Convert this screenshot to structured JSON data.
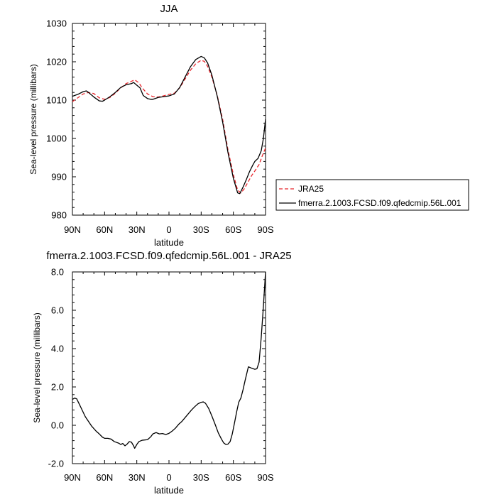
{
  "chart_data": [
    {
      "type": "line",
      "title": "JJA",
      "xlabel": "latitude",
      "ylabel": "Sea-level pressure (millibars)",
      "xlim": [
        90,
        -90
      ],
      "ylim": [
        980,
        1030
      ],
      "xticks": [
        90,
        60,
        30,
        0,
        -30,
        -60,
        -90
      ],
      "xtick_labels": [
        "90N",
        "60N",
        "30N",
        "0",
        "30S",
        "60S",
        "90S"
      ],
      "yticks": [
        980,
        990,
        1000,
        1010,
        1020,
        1030
      ],
      "ytick_labels": [
        "980",
        "990",
        "1000",
        "1010",
        "1020",
        "1030"
      ],
      "legend_position": "outside-right",
      "series": [
        {
          "name": "JRA25",
          "color": "#e8262c",
          "dash": "dashed",
          "points": [
            [
              90,
              1009.6
            ],
            [
              85,
              1010.6
            ],
            [
              80,
              1011.6
            ],
            [
              75,
              1012.0
            ],
            [
              70,
              1011.7
            ],
            [
              65,
              1010.6
            ],
            [
              60,
              1010.2
            ],
            [
              55,
              1010.7
            ],
            [
              50,
              1011.8
            ],
            [
              45,
              1013.2
            ],
            [
              40,
              1014.3
            ],
            [
              35,
              1014.9
            ],
            [
              32,
              1015.3
            ],
            [
              28,
              1014.5
            ],
            [
              25,
              1013.2
            ],
            [
              20,
              1011.6
            ],
            [
              15,
              1010.9
            ],
            [
              10,
              1010.8
            ],
            [
              5,
              1011.1
            ],
            [
              0,
              1011.5
            ],
            [
              -5,
              1011.8
            ],
            [
              -10,
              1013.2
            ],
            [
              -15,
              1015.5
            ],
            [
              -20,
              1017.8
            ],
            [
              -25,
              1019.5
            ],
            [
              -30,
              1020.4
            ],
            [
              -33,
              1020.1
            ],
            [
              -36,
              1018.8
            ],
            [
              -40,
              1016.0
            ],
            [
              -45,
              1011.2
            ],
            [
              -50,
              1005.0
            ],
            [
              -55,
              997.0
            ],
            [
              -60,
              990.6
            ],
            [
              -64,
              986.5
            ],
            [
              -67,
              985.8
            ],
            [
              -70,
              986.8
            ],
            [
              -73,
              988.3
            ],
            [
              -77,
              990.3
            ],
            [
              -80,
              991.5
            ],
            [
              -84,
              993.2
            ],
            [
              -87,
              995.5
            ],
            [
              -90,
              997.5
            ]
          ]
        },
        {
          "name": "fmerra.2.1003.FCSD.f09.qfedcmip.56L.001",
          "color": "#000000",
          "dash": "solid",
          "points": [
            [
              90,
              1011.0
            ],
            [
              85,
              1011.5
            ],
            [
              80,
              1012.2
            ],
            [
              77,
              1012.4
            ],
            [
              75,
              1012.0
            ],
            [
              70,
              1010.8
            ],
            [
              65,
              1009.8
            ],
            [
              62,
              1009.7
            ],
            [
              60,
              1010.0
            ],
            [
              55,
              1010.9
            ],
            [
              50,
              1012.0
            ],
            [
              45,
              1013.3
            ],
            [
              40,
              1014.0
            ],
            [
              35,
              1014.3
            ],
            [
              33,
              1014.6
            ],
            [
              30,
              1013.9
            ],
            [
              27,
              1013.2
            ],
            [
              24,
              1011.2
            ],
            [
              20,
              1010.4
            ],
            [
              17,
              1010.2
            ],
            [
              15,
              1010.2
            ],
            [
              10,
              1010.7
            ],
            [
              5,
              1010.9
            ],
            [
              0,
              1011.1
            ],
            [
              -5,
              1011.6
            ],
            [
              -10,
              1013.3
            ],
            [
              -15,
              1016.0
            ],
            [
              -20,
              1018.7
            ],
            [
              -25,
              1020.6
            ],
            [
              -30,
              1021.4
            ],
            [
              -33,
              1021.0
            ],
            [
              -36,
              1019.7
            ],
            [
              -40,
              1016.5
            ],
            [
              -45,
              1011.0
            ],
            [
              -50,
              1004.3
            ],
            [
              -55,
              996.3
            ],
            [
              -60,
              989.6
            ],
            [
              -64,
              985.8
            ],
            [
              -66,
              985.6
            ],
            [
              -69,
              987.3
            ],
            [
              -72,
              989.2
            ],
            [
              -75,
              991.3
            ],
            [
              -78,
              993.0
            ],
            [
              -80,
              994.0
            ],
            [
              -83,
              994.8
            ],
            [
              -86,
              996.8
            ],
            [
              -88,
              1000.0
            ],
            [
              -90,
              1005.0
            ]
          ]
        }
      ]
    },
    {
      "type": "line",
      "title": "fmerra.2.1003.FCSD.f09.qfedcmip.56L.001 - JRA25",
      "xlabel": "latitude",
      "ylabel": "Sea-level pressure (millibars)",
      "xlim": [
        90,
        -90
      ],
      "ylim": [
        -2,
        8
      ],
      "xticks": [
        90,
        60,
        30,
        0,
        -30,
        -60,
        -90
      ],
      "xtick_labels": [
        "90N",
        "60N",
        "30N",
        "0",
        "30S",
        "60S",
        "90S"
      ],
      "yticks": [
        -2,
        0,
        2,
        4,
        6,
        8
      ],
      "ytick_labels": [
        "-2.0",
        "0.0",
        "2.0",
        "4.0",
        "6.0",
        "8.0"
      ],
      "series": [
        {
          "color": "#000000",
          "dash": "solid",
          "points": [
            [
              90,
              1.35
            ],
            [
              88,
              1.42
            ],
            [
              86,
              1.38
            ],
            [
              84,
              1.15
            ],
            [
              81,
              0.8
            ],
            [
              78,
              0.45
            ],
            [
              75,
              0.2
            ],
            [
              72,
              -0.05
            ],
            [
              68,
              -0.3
            ],
            [
              65,
              -0.45
            ],
            [
              62,
              -0.62
            ],
            [
              60,
              -0.68
            ],
            [
              57,
              -0.68
            ],
            [
              54,
              -0.72
            ],
            [
              51,
              -0.85
            ],
            [
              47,
              -0.93
            ],
            [
              45,
              -1.0
            ],
            [
              43,
              -0.95
            ],
            [
              41,
              -1.07
            ],
            [
              39,
              -0.98
            ],
            [
              37,
              -0.85
            ],
            [
              35,
              -0.88
            ],
            [
              33,
              -1.07
            ],
            [
              32,
              -1.2
            ],
            [
              30,
              -1.0
            ],
            [
              28,
              -0.85
            ],
            [
              25,
              -0.78
            ],
            [
              20,
              -0.75
            ],
            [
              17,
              -0.6
            ],
            [
              15,
              -0.45
            ],
            [
              12,
              -0.38
            ],
            [
              9,
              -0.45
            ],
            [
              6,
              -0.43
            ],
            [
              3,
              -0.48
            ],
            [
              0,
              -0.42
            ],
            [
              -3,
              -0.3
            ],
            [
              -6,
              -0.15
            ],
            [
              -9,
              0.05
            ],
            [
              -12,
              0.2
            ],
            [
              -15,
              0.4
            ],
            [
              -18,
              0.6
            ],
            [
              -21,
              0.8
            ],
            [
              -24,
              0.97
            ],
            [
              -27,
              1.12
            ],
            [
              -30,
              1.2
            ],
            [
              -32,
              1.22
            ],
            [
              -34,
              1.15
            ],
            [
              -37,
              0.88
            ],
            [
              -40,
              0.48
            ],
            [
              -43,
              0.05
            ],
            [
              -46,
              -0.4
            ],
            [
              -49,
              -0.73
            ],
            [
              -51,
              -0.92
            ],
            [
              -53,
              -1.0
            ],
            [
              -55,
              -0.98
            ],
            [
              -57,
              -0.85
            ],
            [
              -59,
              -0.45
            ],
            [
              -61,
              0.1
            ],
            [
              -63,
              0.68
            ],
            [
              -65,
              1.2
            ],
            [
              -67,
              1.42
            ],
            [
              -69,
              1.85
            ],
            [
              -71,
              2.35
            ],
            [
              -74,
              3.05
            ],
            [
              -77,
              2.98
            ],
            [
              -80,
              2.92
            ],
            [
              -82,
              2.95
            ],
            [
              -84,
              3.3
            ],
            [
              -86,
              4.6
            ],
            [
              -88,
              6.2
            ],
            [
              -90,
              8.0
            ]
          ]
        }
      ]
    }
  ]
}
